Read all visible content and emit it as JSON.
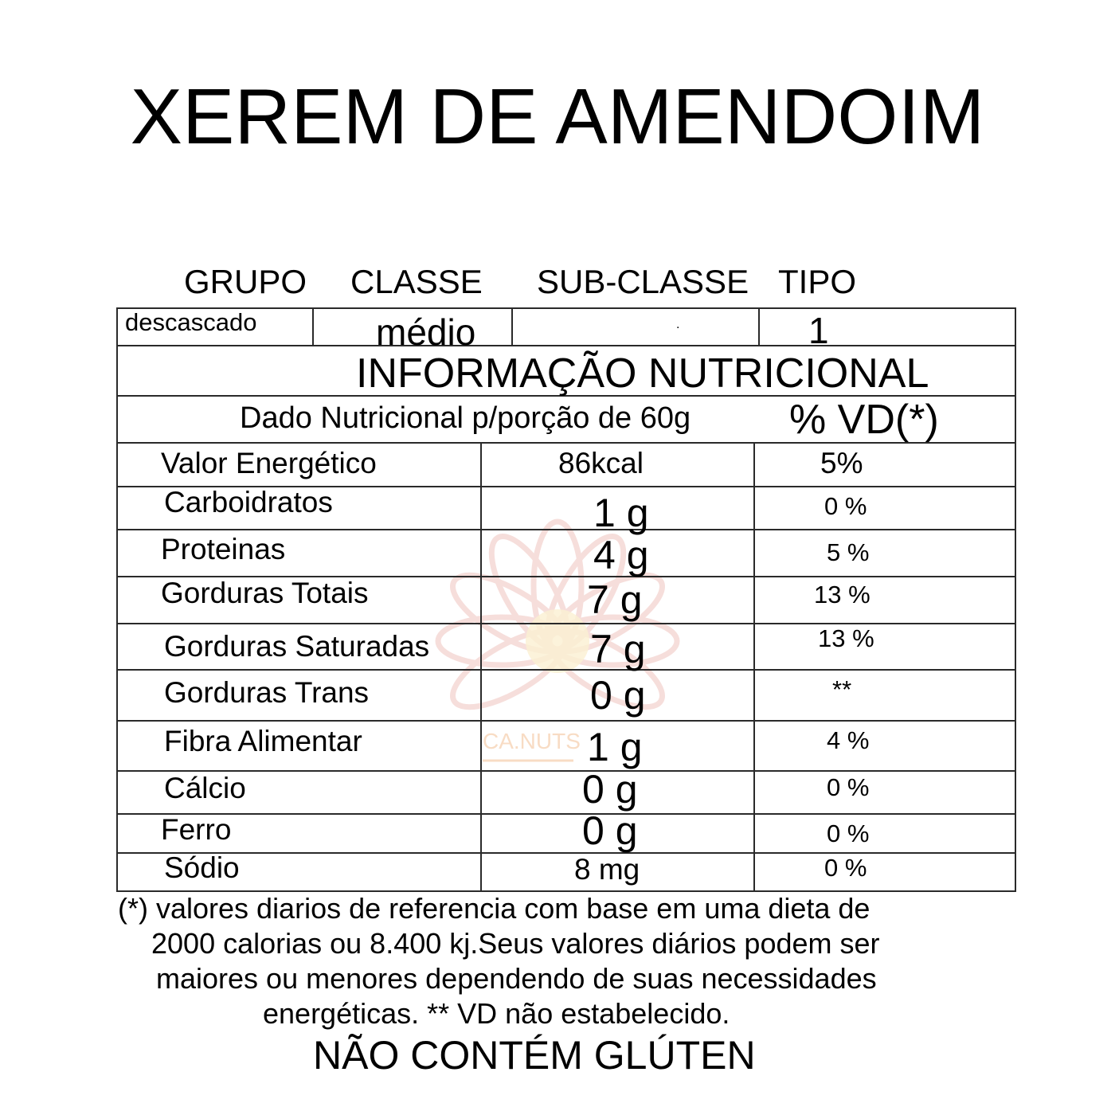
{
  "title": "XEREM DE AMENDOIM",
  "classification": {
    "headers": [
      "GRUPO",
      "CLASSE",
      "SUB-CLASSE",
      "TIPO"
    ],
    "values": [
      "descascado",
      "médio",
      ".",
      "1"
    ]
  },
  "nutrition": {
    "heading": "INFORMAÇÃO NUTRICIONAL",
    "portion_label": "Dado Nutricional p/porção de 60g",
    "dv_label": "% VD(*)",
    "rows": [
      {
        "name": "Valor Energético",
        "amount": "86kcal",
        "dv": "5%"
      },
      {
        "name": "Carboidratos",
        "amount": "1 g",
        "dv": "0 %"
      },
      {
        "name": "Proteinas",
        "amount": "4 g",
        "dv": "5 %"
      },
      {
        "name": "Gorduras Totais",
        "amount": "7 g",
        "dv": "13 %"
      },
      {
        "name": "Gorduras Saturadas",
        "amount": "7 g",
        "dv": "13 %"
      },
      {
        "name": "Gorduras Trans",
        "amount": "0 g",
        "dv": "**"
      },
      {
        "name": "Fibra Alimentar",
        "amount": "1 g",
        "dv": "4 %"
      },
      {
        "name": "Cálcio",
        "amount": "0 g",
        "dv": "0 %"
      },
      {
        "name": "Ferro",
        "amount": "0 g",
        "dv": "0 %"
      },
      {
        "name": "Sódio",
        "amount": "8 mg",
        "dv": "0 %"
      }
    ]
  },
  "footnote": [
    "(*) valores diarios de referencia com base em uma dieta de",
    "2000 calorias ou 8.400 kj.Seus valores diários podem ser",
    "maiores ou menores dependendo de suas necessidades",
    "energéticas. ** VD não estabelecido."
  ],
  "gluten_notice": "NÃO CONTÉM GLÚTEN",
  "watermark": {
    "text": "CA.NUTS",
    "icon": "lotus-logo",
    "colors": [
      "#f4c9c9",
      "#f9e2b8"
    ]
  }
}
